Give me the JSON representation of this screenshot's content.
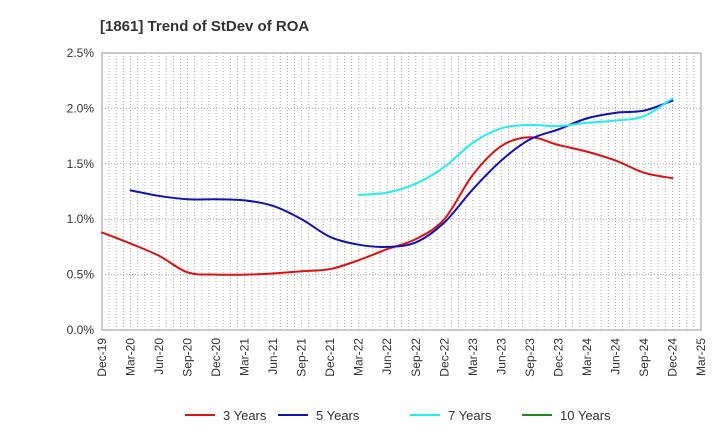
{
  "chart_data": {
    "type": "line",
    "title": "[1861]  Trend of StDev of ROA",
    "xlabel": "",
    "ylabel": "",
    "ylim": [
      0,
      2.5
    ],
    "y_ticks": [
      "0.0%",
      "0.5%",
      "1.0%",
      "1.5%",
      "2.0%",
      "2.5%"
    ],
    "y_tick_values": [
      0,
      0.5,
      1.0,
      1.5,
      2.0,
      2.5
    ],
    "y_unit": "%",
    "x_labels": [
      "Dec-19",
      "Mar-20",
      "Jun-20",
      "Sep-20",
      "Dec-20",
      "Mar-21",
      "Jun-21",
      "Sep-21",
      "Dec-21",
      "Mar-22",
      "Jun-22",
      "Sep-22",
      "Dec-22",
      "Mar-23",
      "Jun-23",
      "Sep-23",
      "Dec-23",
      "Mar-24",
      "Jun-24",
      "Sep-24",
      "Dec-24",
      "Mar-25"
    ],
    "grid": true,
    "legend_position": "bottom",
    "series": [
      {
        "name": "3 Years",
        "color": "#dd1111",
        "values": [
          0.88,
          0.78,
          0.67,
          0.52,
          0.5,
          0.5,
          0.51,
          0.53,
          0.55,
          0.63,
          0.73,
          0.82,
          1.0,
          1.4,
          1.66,
          1.74,
          1.67,
          1.61,
          1.53,
          1.42,
          1.37,
          null
        ]
      },
      {
        "name": "5 Years",
        "color": "#1111bb",
        "values": [
          null,
          1.26,
          1.21,
          1.18,
          1.18,
          1.17,
          1.12,
          1.0,
          0.84,
          0.77,
          0.75,
          0.79,
          0.97,
          1.27,
          1.53,
          1.72,
          1.81,
          1.91,
          1.96,
          1.98,
          2.07,
          null
        ]
      },
      {
        "name": "7 Years",
        "color": "#22eeee",
        "values": [
          null,
          null,
          null,
          null,
          null,
          null,
          null,
          null,
          null,
          1.22,
          1.24,
          1.32,
          1.47,
          1.69,
          1.82,
          1.85,
          1.84,
          1.87,
          1.89,
          1.93,
          2.09,
          null
        ]
      },
      {
        "name": "10 Years",
        "color": "#228822",
        "values": [
          null,
          null,
          null,
          null,
          null,
          null,
          null,
          null,
          null,
          null,
          null,
          null,
          null,
          null,
          null,
          null,
          null,
          null,
          null,
          null,
          null,
          null
        ]
      }
    ]
  }
}
